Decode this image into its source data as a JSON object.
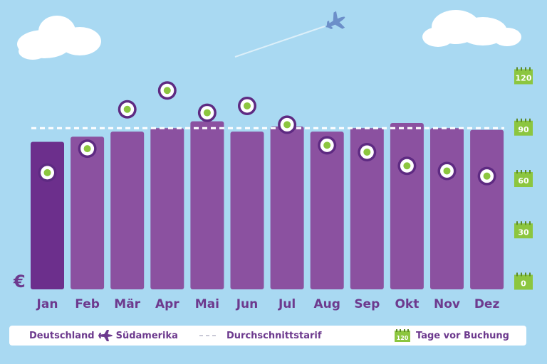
{
  "chart_data": {
    "type": "bar",
    "currency_symbol": "€",
    "categories": [
      "Jan",
      "Feb",
      "Mär",
      "Apr",
      "Mai",
      "Jun",
      "Jul",
      "Aug",
      "Sep",
      "Okt",
      "Nov",
      "Dez"
    ],
    "series": [
      {
        "name": "Deutschland → Südamerika",
        "type": "bar",
        "values": [
          82,
          85,
          88,
          90,
          94,
          88,
          91,
          88,
          90,
          93,
          90,
          89
        ]
      },
      {
        "name": "Tage vor Buchung",
        "type": "scatter",
        "axis": "right",
        "values": [
          64,
          78,
          101,
          112,
          99,
          103,
          92,
          80,
          76,
          68,
          65,
          62
        ]
      }
    ],
    "reference_line": {
      "name": "Durchschnittstarif",
      "value": 90,
      "axis": "right"
    },
    "right_axis": {
      "ticks": [
        0,
        30,
        60,
        90,
        120
      ],
      "range": [
        0,
        120
      ]
    },
    "ylim": [
      0,
      120
    ],
    "highlight_category": "Jan",
    "colors": {
      "bar": "#8b51a0",
      "bar_highlight": "#6c2f8c",
      "dot_ring": "#5e2a82",
      "dot_center": "#8cc63f",
      "calendar": "#8cc63f",
      "sky": "#a9d9f2",
      "label": "#6d3a8e"
    }
  },
  "legend": {
    "route_from": "Deutschland",
    "route_to": "Südamerika",
    "average_label": "Durchschnittstarif",
    "calendar_value": "120",
    "days_label": "Tage vor Buchung"
  },
  "icons": [
    "cloud-icon",
    "airplane-icon",
    "calendar-icon",
    "euro-sign"
  ]
}
